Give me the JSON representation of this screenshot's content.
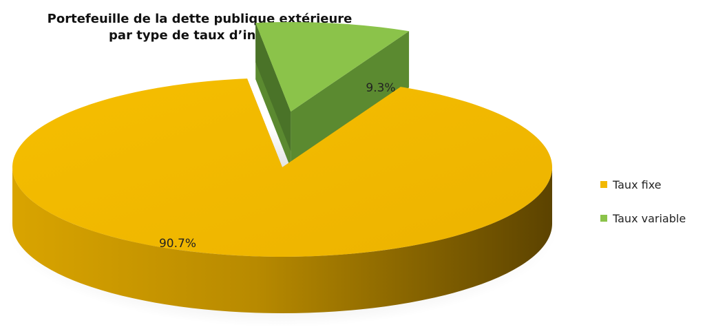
{
  "chart_data": {
    "type": "pie",
    "title": [
      "Portefeuille de la dette publique extérieure",
      "par type de taux d’intérêt"
    ],
    "slices": [
      {
        "name": "Taux fixe",
        "value": 90.7,
        "label": "90.7%",
        "color": "#F2B800",
        "exploded": false
      },
      {
        "name": "Taux variable",
        "value": 9.3,
        "label": "9.3%",
        "color": "#8BC34A",
        "exploded": true
      }
    ],
    "legend_position": "right",
    "style": "3d-pie"
  }
}
